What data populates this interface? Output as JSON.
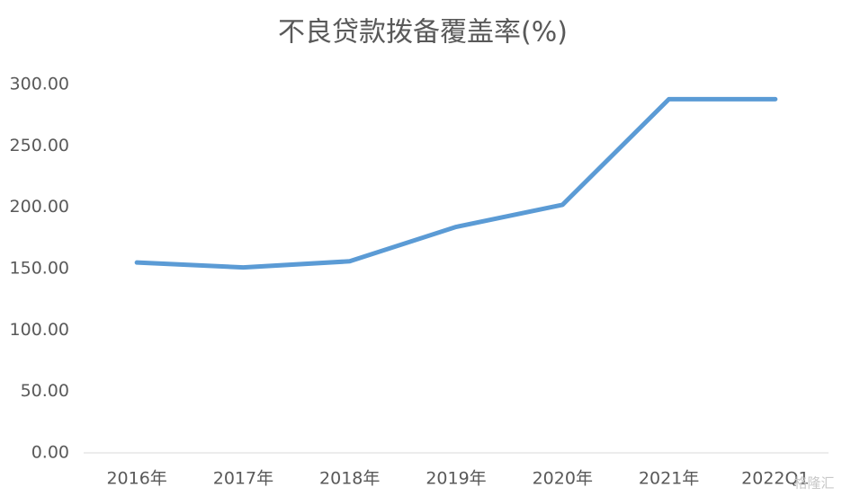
{
  "chart_data": {
    "type": "line",
    "title": "不良贷款拨备覆盖率(%)",
    "categories": [
      "2016年",
      "2017年",
      "2018年",
      "2019年",
      "2020年",
      "2021年",
      "2022Q1"
    ],
    "series": [
      {
        "name": "不良贷款拨备覆盖率",
        "color": "#5b9bd5",
        "values": [
          155,
          151,
          156,
          184,
          202,
          288,
          288
        ]
      }
    ],
    "ylim": [
      0,
      300
    ],
    "yticks": [
      {
        "value": 0,
        "label": "0.00"
      },
      {
        "value": 50,
        "label": "50.00"
      },
      {
        "value": 100,
        "label": "100.00"
      },
      {
        "value": 150,
        "label": "150.00"
      },
      {
        "value": 200,
        "label": "200.00"
      },
      {
        "value": 250,
        "label": "250.00"
      },
      {
        "value": 300,
        "label": "300.00"
      }
    ],
    "grid": false,
    "watermark": "格隆汇"
  }
}
